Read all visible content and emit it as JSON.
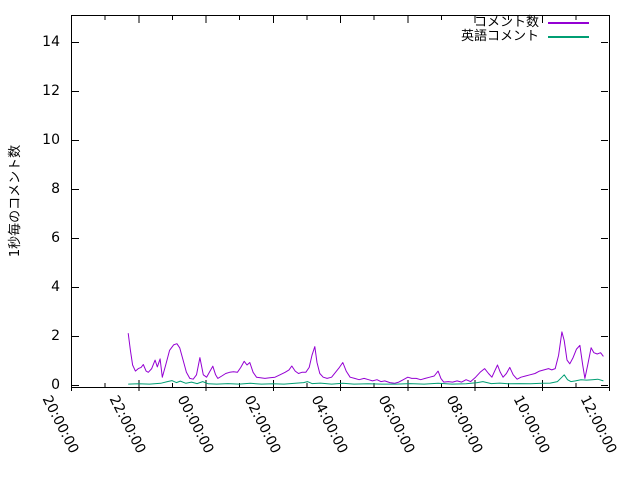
{
  "chart_data": {
    "type": "line",
    "title": "",
    "xlabel": "",
    "ylabel": "1秒毎のコメント数",
    "grid": false,
    "legend_position": "top-right-inside",
    "background": "#ffffff",
    "axis_color": "#000000",
    "x_axis": {
      "kind": "time",
      "start": "20:00:00",
      "end": "12:00:00",
      "major_tick_hours": 2,
      "minor_tick_hours": 1,
      "tick_labels": [
        "20:00:00",
        "22:00:00",
        "00:00:00",
        "02:00:00",
        "04:00:00",
        "06:00:00",
        "08:00:00",
        "10:00:00",
        "12:00:00"
      ]
    },
    "y_axis": {
      "ticks": [
        0,
        2,
        4,
        6,
        8,
        10,
        12,
        14
      ],
      "range_shown": [
        -0.1,
        15.1
      ]
    },
    "series": [
      {
        "name": "コメント数",
        "color": "#9400D3",
        "points": [
          [
            "21:42",
            2.1
          ],
          [
            "21:46",
            1.4
          ],
          [
            "21:50",
            0.8
          ],
          [
            "21:55",
            0.55
          ],
          [
            "22:00",
            0.65
          ],
          [
            "22:05",
            0.7
          ],
          [
            "22:09",
            0.82
          ],
          [
            "22:14",
            0.55
          ],
          [
            "22:18",
            0.5
          ],
          [
            "22:24",
            0.65
          ],
          [
            "22:30",
            1.0
          ],
          [
            "22:34",
            0.72
          ],
          [
            "22:39",
            1.05
          ],
          [
            "22:43",
            0.3
          ],
          [
            "22:49",
            0.8
          ],
          [
            "22:56",
            1.4
          ],
          [
            "23:03",
            1.62
          ],
          [
            "23:09",
            1.67
          ],
          [
            "23:14",
            1.5
          ],
          [
            "23:20",
            1.0
          ],
          [
            "23:26",
            0.5
          ],
          [
            "23:32",
            0.25
          ],
          [
            "23:38",
            0.22
          ],
          [
            "23:44",
            0.4
          ],
          [
            "23:50",
            1.1
          ],
          [
            "23:56",
            0.4
          ],
          [
            "00:02",
            0.3
          ],
          [
            "00:08",
            0.55
          ],
          [
            "00:13",
            0.75
          ],
          [
            "00:18",
            0.4
          ],
          [
            "00:22",
            0.25
          ],
          [
            "00:29",
            0.35
          ],
          [
            "00:36",
            0.45
          ],
          [
            "00:43",
            0.5
          ],
          [
            "00:50",
            0.52
          ],
          [
            "00:57",
            0.5
          ],
          [
            "01:03",
            0.7
          ],
          [
            "01:09",
            0.95
          ],
          [
            "01:14",
            0.8
          ],
          [
            "01:19",
            0.9
          ],
          [
            "01:25",
            0.5
          ],
          [
            "01:31",
            0.3
          ],
          [
            "01:38",
            0.28
          ],
          [
            "01:46",
            0.25
          ],
          [
            "01:55",
            0.28
          ],
          [
            "02:04",
            0.3
          ],
          [
            "02:13",
            0.4
          ],
          [
            "02:22",
            0.5
          ],
          [
            "02:29",
            0.6
          ],
          [
            "02:34",
            0.76
          ],
          [
            "02:40",
            0.55
          ],
          [
            "02:46",
            0.45
          ],
          [
            "02:52",
            0.5
          ],
          [
            "02:59",
            0.5
          ],
          [
            "03:05",
            0.7
          ],
          [
            "03:10",
            1.2
          ],
          [
            "03:15",
            1.55
          ],
          [
            "03:19",
            0.9
          ],
          [
            "03:24",
            0.45
          ],
          [
            "03:30",
            0.3
          ],
          [
            "03:37",
            0.25
          ],
          [
            "03:45",
            0.3
          ],
          [
            "03:52",
            0.5
          ],
          [
            "03:59",
            0.7
          ],
          [
            "04:05",
            0.9
          ],
          [
            "04:11",
            0.55
          ],
          [
            "04:18",
            0.3
          ],
          [
            "04:26",
            0.25
          ],
          [
            "04:34",
            0.2
          ],
          [
            "04:43",
            0.25
          ],
          [
            "04:51",
            0.2
          ],
          [
            "04:58",
            0.15
          ],
          [
            "05:06",
            0.2
          ],
          [
            "05:13",
            0.12
          ],
          [
            "05:20",
            0.15
          ],
          [
            "05:29",
            0.08
          ],
          [
            "05:37",
            0.05
          ],
          [
            "05:45",
            0.1
          ],
          [
            "05:53",
            0.2
          ],
          [
            "06:01",
            0.3
          ],
          [
            "06:08",
            0.25
          ],
          [
            "06:16",
            0.25
          ],
          [
            "06:24",
            0.2
          ],
          [
            "06:32",
            0.25
          ],
          [
            "06:40",
            0.3
          ],
          [
            "06:48",
            0.35
          ],
          [
            "06:55",
            0.55
          ],
          [
            "07:00",
            0.25
          ],
          [
            "07:05",
            0.1
          ],
          [
            "07:13",
            0.12
          ],
          [
            "07:21",
            0.1
          ],
          [
            "07:29",
            0.15
          ],
          [
            "07:37",
            0.1
          ],
          [
            "07:45",
            0.2
          ],
          [
            "07:53",
            0.12
          ],
          [
            "08:02",
            0.3
          ],
          [
            "08:10",
            0.5
          ],
          [
            "08:18",
            0.65
          ],
          [
            "08:25",
            0.45
          ],
          [
            "08:31",
            0.3
          ],
          [
            "08:37",
            0.6
          ],
          [
            "08:41",
            0.8
          ],
          [
            "08:46",
            0.5
          ],
          [
            "08:51",
            0.3
          ],
          [
            "08:57",
            0.45
          ],
          [
            "09:03",
            0.7
          ],
          [
            "09:09",
            0.4
          ],
          [
            "09:16",
            0.22
          ],
          [
            "09:23",
            0.3
          ],
          [
            "09:31",
            0.35
          ],
          [
            "09:39",
            0.4
          ],
          [
            "09:48",
            0.45
          ],
          [
            "09:56",
            0.55
          ],
          [
            "10:04",
            0.6
          ],
          [
            "10:12",
            0.65
          ],
          [
            "10:18",
            0.6
          ],
          [
            "10:24",
            0.65
          ],
          [
            "10:30",
            1.2
          ],
          [
            "10:36",
            2.15
          ],
          [
            "10:40",
            1.8
          ],
          [
            "10:45",
            1.0
          ],
          [
            "10:50",
            0.85
          ],
          [
            "10:56",
            1.1
          ],
          [
            "11:02",
            1.45
          ],
          [
            "11:08",
            1.6
          ],
          [
            "11:13",
            0.8
          ],
          [
            "11:17",
            0.25
          ],
          [
            "11:22",
            0.8
          ],
          [
            "11:28",
            1.5
          ],
          [
            "11:33",
            1.3
          ],
          [
            "11:39",
            1.25
          ],
          [
            "11:45",
            1.3
          ],
          [
            "11:50",
            1.15
          ]
        ]
      },
      {
        "name": "英語コメント",
        "color": "#009E73",
        "points": [
          [
            "21:42",
            0.02
          ],
          [
            "22:00",
            0.03
          ],
          [
            "22:20",
            0.02
          ],
          [
            "22:40",
            0.05
          ],
          [
            "22:52",
            0.12
          ],
          [
            "23:00",
            0.16
          ],
          [
            "23:08",
            0.08
          ],
          [
            "23:15",
            0.14
          ],
          [
            "23:25",
            0.05
          ],
          [
            "23:35",
            0.1
          ],
          [
            "23:45",
            0.04
          ],
          [
            "23:55",
            0.12
          ],
          [
            "00:05",
            0.03
          ],
          [
            "00:20",
            0.02
          ],
          [
            "00:40",
            0.04
          ],
          [
            "01:00",
            0.02
          ],
          [
            "01:20",
            0.05
          ],
          [
            "01:40",
            0.02
          ],
          [
            "02:00",
            0.03
          ],
          [
            "02:20",
            0.02
          ],
          [
            "02:40",
            0.05
          ],
          [
            "02:55",
            0.08
          ],
          [
            "03:02",
            0.12
          ],
          [
            "03:10",
            0.04
          ],
          [
            "03:25",
            0.06
          ],
          [
            "03:45",
            0.02
          ],
          [
            "04:05",
            0.05
          ],
          [
            "04:25",
            0.02
          ],
          [
            "04:50",
            0.03
          ],
          [
            "05:15",
            0.02
          ],
          [
            "05:40",
            0.02
          ],
          [
            "06:05",
            0.04
          ],
          [
            "06:30",
            0.02
          ],
          [
            "06:55",
            0.05
          ],
          [
            "07:20",
            0.02
          ],
          [
            "07:45",
            0.03
          ],
          [
            "08:05",
            0.08
          ],
          [
            "08:15",
            0.12
          ],
          [
            "08:30",
            0.04
          ],
          [
            "08:45",
            0.06
          ],
          [
            "09:00",
            0.03
          ],
          [
            "09:20",
            0.04
          ],
          [
            "09:40",
            0.03
          ],
          [
            "10:00",
            0.05
          ],
          [
            "10:15",
            0.06
          ],
          [
            "10:28",
            0.12
          ],
          [
            "10:36",
            0.3
          ],
          [
            "10:40",
            0.4
          ],
          [
            "10:46",
            0.2
          ],
          [
            "10:52",
            0.12
          ],
          [
            "11:00",
            0.15
          ],
          [
            "11:10",
            0.2
          ],
          [
            "11:20",
            0.18
          ],
          [
            "11:30",
            0.2
          ],
          [
            "11:40",
            0.22
          ],
          [
            "11:50",
            0.15
          ]
        ]
      }
    ]
  }
}
